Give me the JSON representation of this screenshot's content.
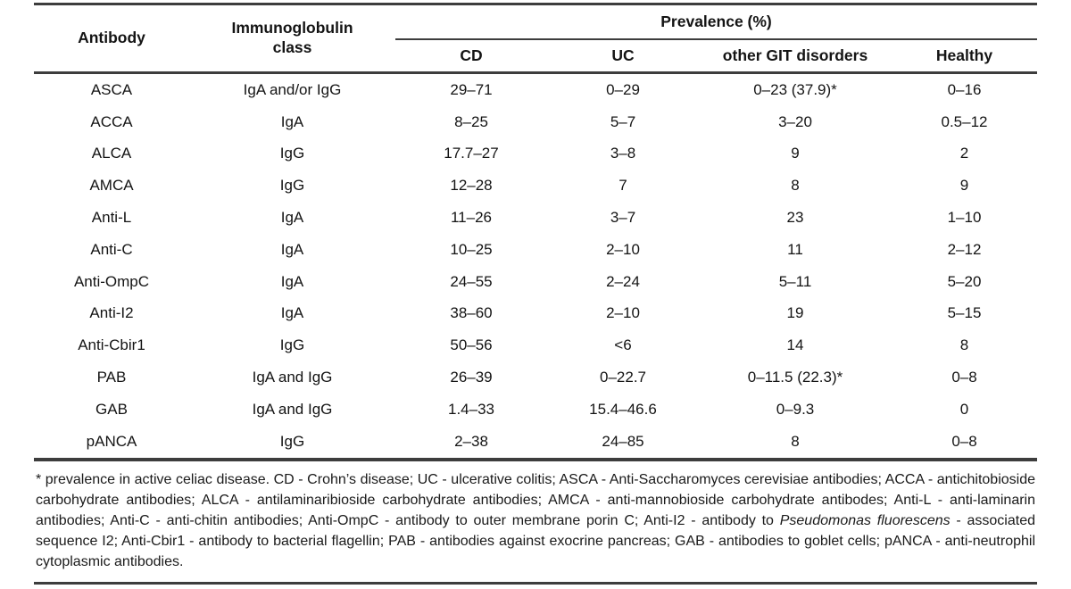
{
  "table": {
    "headers": {
      "antibody": "Antibody",
      "ig_class": "Immunoglobulin class",
      "prevalence": "Prevalence (%)",
      "sub": [
        "CD",
        "UC",
        "other GIT disorders",
        "Healthy"
      ]
    },
    "rows": [
      [
        "ASCA",
        "IgA and/or IgG",
        "29–71",
        "0–29",
        "0–23 (37.9)*",
        "0–16"
      ],
      [
        "ACCA",
        "IgA",
        "8–25",
        "5–7",
        "3–20",
        "0.5–12"
      ],
      [
        "ALCA",
        "IgG",
        "17.7–27",
        "3–8",
        "9",
        "2"
      ],
      [
        "AMCA",
        "IgG",
        "12–28",
        "7",
        "8",
        "9"
      ],
      [
        "Anti-L",
        "IgA",
        "11–26",
        "3–7",
        "23",
        "1–10"
      ],
      [
        "Anti-C",
        "IgA",
        "10–25",
        "2–10",
        "11",
        "2–12"
      ],
      [
        "Anti-OmpC",
        "IgA",
        "24–55",
        "2–24",
        "5–11",
        "5–20"
      ],
      [
        "Anti-I2",
        "IgA",
        "38–60",
        "2–10",
        "19",
        "5–15"
      ],
      [
        "Anti-Cbir1",
        "IgG",
        "50–56",
        "<6",
        "14",
        "8"
      ],
      [
        "PAB",
        "IgA and IgG",
        "26–39",
        "0–22.7",
        "0–11.5 (22.3)*",
        "0–8"
      ],
      [
        "GAB",
        "IgA and IgG",
        "1.4–33",
        "15.4–46.6",
        "0–9.3",
        "0"
      ],
      [
        "pANCA",
        "IgG",
        "2–38",
        "24–85",
        "8",
        "0–8"
      ]
    ]
  },
  "footnote": {
    "part1": "* prevalence in active celiac disease. CD - Crohn’s disease; UC - ulcerative colitis; ASCA - Anti-Saccharomyces cerevisiae antibodies; ACCA - antichitobioside carbohydrate antibodies; ALCA - antilaminaribioside carbohydrate antibodies; AMCA - anti-mannobioside carbohydrate antibodes; Anti-L - anti-laminarin antibodies; Anti-C - anti-chitin antibodies; Anti-OmpC - antibody to outer membrane porin C; Anti-I2 - antibody to ",
    "italic": "Pseudomonas fluorescens",
    "part2": " - associated sequence I2; Anti-Cbir1 - antibody to bacterial flagellin; PAB - antibodies against exocrine pancreas; GAB - antibodies to goblet cells; pANCA - anti-neutrophil cytoplasmic antibodies."
  }
}
